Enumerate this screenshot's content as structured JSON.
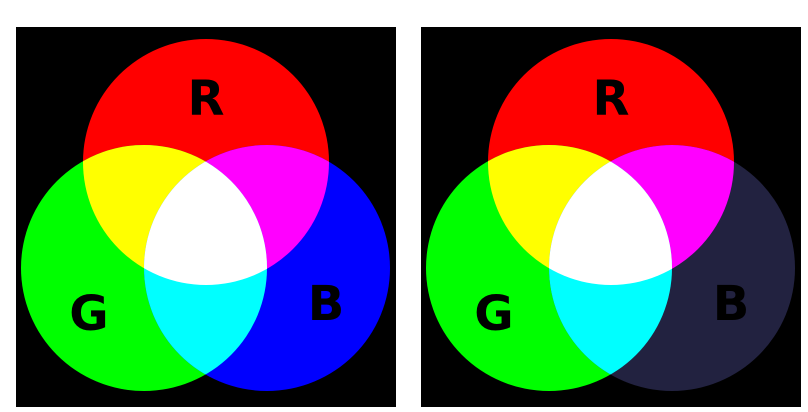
{
  "panels": [
    {
      "id": "additive-full",
      "circles": {
        "red": {
          "label": "R",
          "color": "#ff0000"
        },
        "green": {
          "label": "G",
          "color": "#00ff00"
        },
        "blue": {
          "label": "B",
          "color": "#0000ff"
        }
      },
      "overlaps": {
        "red_green": "#ffff00",
        "red_blue": "#ff00ff",
        "green_blue": "#00ffff",
        "all": "#ffffff"
      }
    },
    {
      "id": "additive-dim-blue",
      "circles": {
        "red": {
          "label": "R",
          "color": "#ff0000"
        },
        "green": {
          "label": "G",
          "color": "#00ff00"
        },
        "blue": {
          "label": "B",
          "color": "#222240"
        }
      },
      "overlaps": {
        "red_green": "#ffff00",
        "red_blue": "#ff00ff",
        "green_blue": "#00ffff",
        "all": "#ffffff"
      }
    }
  ],
  "background": "#000000"
}
